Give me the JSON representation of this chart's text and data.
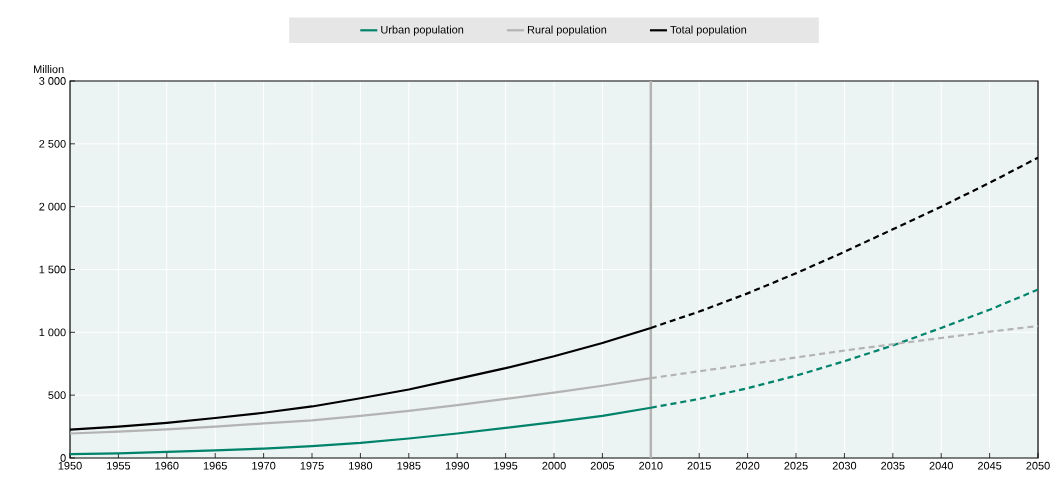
{
  "chart_data": {
    "type": "line",
    "ylabel": "Million",
    "xlim": [
      1950,
      2050
    ],
    "xticks": [
      1950,
      1955,
      1960,
      1965,
      1970,
      1975,
      1980,
      1985,
      1990,
      1995,
      2000,
      2005,
      2010,
      2015,
      2020,
      2025,
      2030,
      2035,
      2040,
      2045,
      2050
    ],
    "ylim": [
      0,
      3000
    ],
    "yticks": [
      0,
      500,
      {
        "value": 1000,
        "label": "1 000"
      },
      {
        "value": 1500,
        "label": "1 500"
      },
      {
        "value": 2000,
        "label": "2 000"
      },
      {
        "value": 2500,
        "label": "2 500"
      },
      {
        "value": 3000,
        "label": "3 000"
      }
    ],
    "grid": true,
    "legend": "top",
    "ref_lines": [
      {
        "axis": "x",
        "value": 2010,
        "color": "#b3b3b3"
      }
    ],
    "series": [
      {
        "name": "Urban population",
        "color": "#00826b",
        "line_style": "solid",
        "x": [
          1950,
          1955,
          1960,
          1965,
          1970,
          1975,
          1980,
          1985,
          1990,
          1995,
          2000,
          2005,
          2010
        ],
        "values": [
          30,
          37,
          48,
          60,
          75,
          95,
          120,
          155,
          195,
          240,
          285,
          335,
          400
        ]
      },
      {
        "name": "Rural population",
        "color": "#b3b3b3",
        "line_style": "solid",
        "x": [
          1950,
          1955,
          1960,
          1965,
          1970,
          1975,
          1980,
          1985,
          1990,
          1995,
          2000,
          2005,
          2010
        ],
        "values": [
          195,
          210,
          228,
          250,
          275,
          300,
          335,
          375,
          420,
          470,
          520,
          575,
          635
        ]
      },
      {
        "name": "Total population",
        "color": "#000000",
        "line_style": "solid",
        "x": [
          1950,
          1955,
          1960,
          1965,
          1970,
          1975,
          1980,
          1985,
          1990,
          1995,
          2000,
          2005,
          2010
        ],
        "values": [
          225,
          250,
          280,
          318,
          360,
          410,
          475,
          545,
          630,
          715,
          810,
          915,
          1035
        ]
      },
      {
        "color": "#00826b",
        "line_style": "dashed",
        "x": [
          2010,
          2015,
          2020,
          2025,
          2030,
          2035,
          2040,
          2045,
          2050
        ],
        "values": [
          400,
          470,
          555,
          655,
          770,
          895,
          1035,
          1180,
          1340
        ]
      },
      {
        "color": "#b3b3b3",
        "line_style": "dashed",
        "x": [
          2010,
          2015,
          2020,
          2025,
          2030,
          2035,
          2040,
          2045,
          2050
        ],
        "values": [
          635,
          690,
          745,
          800,
          855,
          905,
          955,
          1005,
          1050
        ]
      },
      {
        "color": "#000000",
        "line_style": "dashed",
        "x": [
          2010,
          2015,
          2020,
          2025,
          2030,
          2035,
          2040,
          2045,
          2050
        ],
        "values": [
          1035,
          1165,
          1310,
          1470,
          1640,
          1820,
          2000,
          2190,
          2390
        ]
      }
    ]
  }
}
